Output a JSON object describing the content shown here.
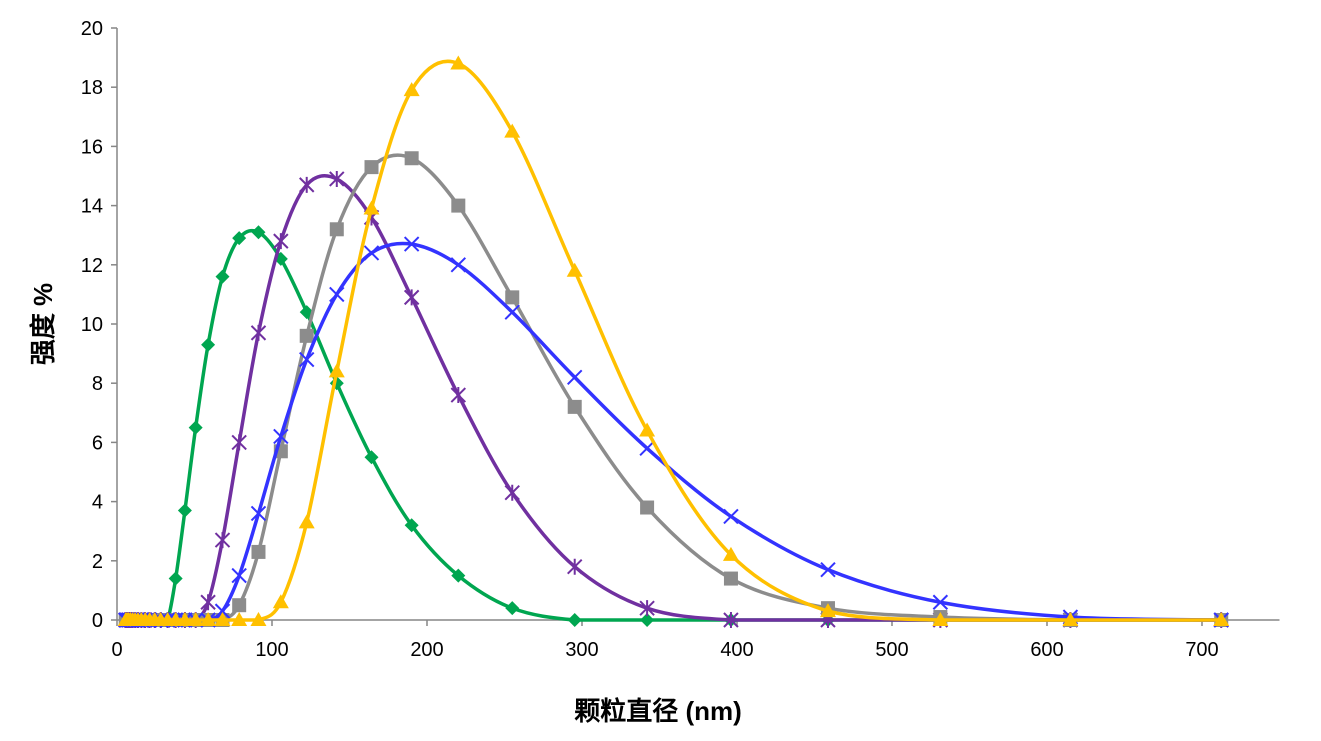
{
  "chart_data": {
    "type": "line",
    "title": "",
    "xlabel": "颗粒直径 (nm)",
    "ylabel": "强度 %",
    "xlim": [
      0,
      750
    ],
    "ylim": [
      0,
      20
    ],
    "xticks": [
      0,
      100,
      200,
      300,
      400,
      500,
      600,
      700
    ],
    "yticks": [
      0,
      2,
      4,
      6,
      8,
      10,
      12,
      14,
      16,
      18,
      20
    ],
    "grid": false,
    "legend": "none",
    "smooth": true,
    "x": [
      5.61,
      6.5,
      7.53,
      8.72,
      10.1,
      11.7,
      13.54,
      15.69,
      18.17,
      21.04,
      24.36,
      28.21,
      32.67,
      37.84,
      43.82,
      50.75,
      58.77,
      68.06,
      78.82,
      91.28,
      105.7,
      122.4,
      141.8,
      164.2,
      190.1,
      220.2,
      255,
      295.3,
      342,
      396.1,
      458.7,
      531.2,
      615.1,
      712.4
    ],
    "series": [
      {
        "color": "#00a650",
        "marker": "diamond",
        "values": [
          0,
          0,
          0,
          0,
          0,
          0,
          0,
          0,
          0,
          0,
          0,
          0,
          0,
          1.4,
          3.7,
          6.5,
          9.3,
          11.6,
          12.9,
          13.1,
          12.2,
          10.4,
          8.0,
          5.5,
          3.2,
          1.5,
          0.4,
          0,
          0,
          0,
          0,
          0,
          0,
          0
        ]
      },
      {
        "color": "#7030a0",
        "marker": "star",
        "values": [
          0,
          0,
          0,
          0,
          0,
          0,
          0,
          0,
          0,
          0,
          0,
          0,
          0,
          0,
          0,
          0,
          0.6,
          2.7,
          6.0,
          9.7,
          12.8,
          14.7,
          14.9,
          13.6,
          10.9,
          7.6,
          4.3,
          1.8,
          0.4,
          0,
          0,
          0,
          0,
          0
        ]
      },
      {
        "color": "#8c8c8c",
        "marker": "square",
        "values": [
          0,
          0,
          0,
          0,
          0,
          0,
          0,
          0,
          0,
          0,
          0,
          0,
          0,
          0,
          0,
          0,
          0,
          0,
          0.5,
          2.3,
          5.7,
          9.6,
          13.2,
          15.3,
          15.6,
          14.0,
          10.9,
          7.2,
          3.8,
          1.4,
          0.4,
          0.1,
          0,
          0
        ]
      },
      {
        "color": "#3333ff",
        "marker": "x",
        "values": [
          0,
          0,
          0,
          0,
          0,
          0,
          0,
          0,
          0,
          0,
          0,
          0,
          0,
          0,
          0,
          0,
          0,
          0.3,
          1.5,
          3.6,
          6.2,
          8.8,
          11.0,
          12.4,
          12.7,
          12.0,
          10.4,
          8.2,
          5.8,
          3.5,
          1.7,
          0.6,
          0.1,
          0
        ]
      },
      {
        "color": "#ffc000",
        "marker": "triangle",
        "values": [
          0,
          0,
          0,
          0,
          0,
          0,
          0,
          0,
          0,
          0,
          0,
          0,
          0,
          0,
          0,
          0,
          0,
          0,
          0,
          0,
          0.6,
          3.3,
          8.4,
          13.9,
          17.9,
          18.8,
          16.5,
          11.8,
          6.4,
          2.2,
          0.3,
          0,
          0,
          0
        ]
      }
    ]
  }
}
